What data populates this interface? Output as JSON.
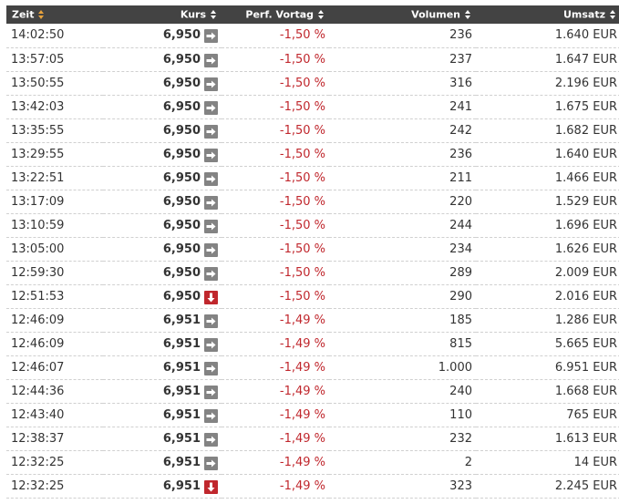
{
  "headers": {
    "zeit": "Zeit",
    "kurs": "Kurs",
    "perf": "Perf. Vortag",
    "volumen": "Volumen",
    "umsatz": "Umsatz"
  },
  "rows": [
    {
      "zeit": "14:02:50",
      "kurs": "6,950",
      "trend": "flat",
      "perf": "-1,50 %",
      "volumen": "236",
      "umsatz": "1.640 EUR"
    },
    {
      "zeit": "13:57:05",
      "kurs": "6,950",
      "trend": "flat",
      "perf": "-1,50 %",
      "volumen": "237",
      "umsatz": "1.647 EUR"
    },
    {
      "zeit": "13:50:55",
      "kurs": "6,950",
      "trend": "flat",
      "perf": "-1,50 %",
      "volumen": "316",
      "umsatz": "2.196 EUR"
    },
    {
      "zeit": "13:42:03",
      "kurs": "6,950",
      "trend": "flat",
      "perf": "-1,50 %",
      "volumen": "241",
      "umsatz": "1.675 EUR"
    },
    {
      "zeit": "13:35:55",
      "kurs": "6,950",
      "trend": "flat",
      "perf": "-1,50 %",
      "volumen": "242",
      "umsatz": "1.682 EUR"
    },
    {
      "zeit": "13:29:55",
      "kurs": "6,950",
      "trend": "flat",
      "perf": "-1,50 %",
      "volumen": "236",
      "umsatz": "1.640 EUR"
    },
    {
      "zeit": "13:22:51",
      "kurs": "6,950",
      "trend": "flat",
      "perf": "-1,50 %",
      "volumen": "211",
      "umsatz": "1.466 EUR"
    },
    {
      "zeit": "13:17:09",
      "kurs": "6,950",
      "trend": "flat",
      "perf": "-1,50 %",
      "volumen": "220",
      "umsatz": "1.529 EUR"
    },
    {
      "zeit": "13:10:59",
      "kurs": "6,950",
      "trend": "flat",
      "perf": "-1,50 %",
      "volumen": "244",
      "umsatz": "1.696 EUR"
    },
    {
      "zeit": "13:05:00",
      "kurs": "6,950",
      "trend": "flat",
      "perf": "-1,50 %",
      "volumen": "234",
      "umsatz": "1.626 EUR"
    },
    {
      "zeit": "12:59:30",
      "kurs": "6,950",
      "trend": "flat",
      "perf": "-1,50 %",
      "volumen": "289",
      "umsatz": "2.009 EUR"
    },
    {
      "zeit": "12:51:53",
      "kurs": "6,950",
      "trend": "down",
      "perf": "-1,50 %",
      "volumen": "290",
      "umsatz": "2.016 EUR"
    },
    {
      "zeit": "12:46:09",
      "kurs": "6,951",
      "trend": "flat",
      "perf": "-1,49 %",
      "volumen": "185",
      "umsatz": "1.286 EUR"
    },
    {
      "zeit": "12:46:09",
      "kurs": "6,951",
      "trend": "flat",
      "perf": "-1,49 %",
      "volumen": "815",
      "umsatz": "5.665 EUR"
    },
    {
      "zeit": "12:46:07",
      "kurs": "6,951",
      "trend": "flat",
      "perf": "-1,49 %",
      "volumen": "1.000",
      "umsatz": "6.951 EUR"
    },
    {
      "zeit": "12:44:36",
      "kurs": "6,951",
      "trend": "flat",
      "perf": "-1,49 %",
      "volumen": "240",
      "umsatz": "1.668 EUR"
    },
    {
      "zeit": "12:43:40",
      "kurs": "6,951",
      "trend": "flat",
      "perf": "-1,49 %",
      "volumen": "110",
      "umsatz": "765 EUR"
    },
    {
      "zeit": "12:38:37",
      "kurs": "6,951",
      "trend": "flat",
      "perf": "-1,49 %",
      "volumen": "232",
      "umsatz": "1.613 EUR"
    },
    {
      "zeit": "12:32:25",
      "kurs": "6,951",
      "trend": "flat",
      "perf": "-1,49 %",
      "volumen": "2",
      "umsatz": "14 EUR"
    },
    {
      "zeit": "12:32:25",
      "kurs": "6,951",
      "trend": "down",
      "perf": "-1,49 %",
      "volumen": "323",
      "umsatz": "2.245 EUR"
    }
  ],
  "colors": {
    "header_bg": "#434343",
    "sort_active": "#e8a33d",
    "negative": "#c0272d",
    "arrow_flat": "#838383",
    "arrow_down": "#c0272d"
  }
}
